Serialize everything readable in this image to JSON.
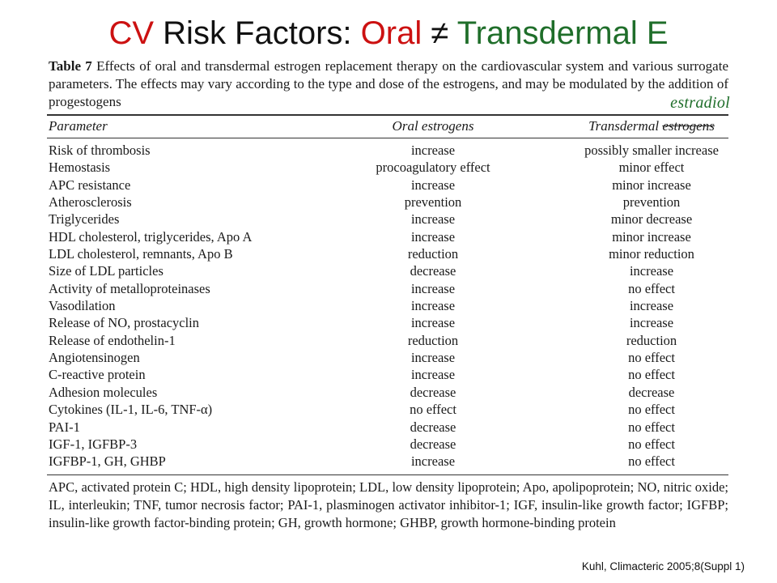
{
  "slide": {
    "title": {
      "part1": "CV",
      "part2": "Risk Factors:",
      "part3": "Oral",
      "neq": "≠",
      "part4": "Transdermal E"
    },
    "overlay_word": "estradiol",
    "citation": "Kuhl, Climacteric 2005;8(Suppl 1)"
  },
  "table": {
    "caption_label": "Table 7",
    "caption_text": "Effects of oral and transdermal estrogen replacement therapy on the cardiovascular system and various surrogate parameters. The effects may vary according to the type and dose of the estrogens, and may be modulated by the addition of progestogens",
    "headers": {
      "parameter": "Parameter",
      "oral": "Oral estrogens",
      "transdermal": "Transdermal",
      "transdermal_struck": "estrogens"
    },
    "rows": [
      {
        "parameter": "Risk of thrombosis",
        "oral": "increase",
        "transdermal": "possibly smaller increase"
      },
      {
        "parameter": "Hemostasis",
        "oral": "procoagulatory effect",
        "transdermal": "minor effect"
      },
      {
        "parameter": "APC resistance",
        "oral": "increase",
        "transdermal": "minor increase"
      },
      {
        "parameter": "Atherosclerosis",
        "oral": "prevention",
        "transdermal": "prevention"
      },
      {
        "parameter": "Triglycerides",
        "oral": "increase",
        "transdermal": "minor decrease"
      },
      {
        "parameter": "HDL cholesterol, triglycerides, Apo A",
        "oral": "increase",
        "transdermal": "minor increase"
      },
      {
        "parameter": "LDL cholesterol, remnants, Apo B",
        "oral": "reduction",
        "transdermal": "minor reduction"
      },
      {
        "parameter": "Size of LDL particles",
        "oral": "decrease",
        "transdermal": "increase"
      },
      {
        "parameter": "Activity of metalloproteinases",
        "oral": "increase",
        "transdermal": "no effect"
      },
      {
        "parameter": "Vasodilation",
        "oral": "increase",
        "transdermal": "increase"
      },
      {
        "parameter": "Release of NO, prostacyclin",
        "oral": "increase",
        "transdermal": "increase"
      },
      {
        "parameter": "Release of endothelin-1",
        "oral": "reduction",
        "transdermal": "reduction"
      },
      {
        "parameter": "Angiotensinogen",
        "oral": "increase",
        "transdermal": "no effect"
      },
      {
        "parameter": "C-reactive protein",
        "oral": "increase",
        "transdermal": "no effect"
      },
      {
        "parameter": "Adhesion molecules",
        "oral": "decrease",
        "transdermal": "decrease"
      },
      {
        "parameter": "Cytokines (IL-1, IL-6, TNF-α)",
        "oral": "no effect",
        "transdermal": "no effect"
      },
      {
        "parameter": "PAI-1",
        "oral": "decrease",
        "transdermal": "no effect"
      },
      {
        "parameter": "IGF-1, IGFBP-3",
        "oral": "decrease",
        "transdermal": "no effect"
      },
      {
        "parameter": "IGFBP-1, GH, GHBP",
        "oral": "increase",
        "transdermal": "no effect"
      }
    ],
    "footnote": "APC, activated protein C; HDL, high density lipoprotein; LDL, low density lipoprotein; Apo, apolipoprotein; NO, nitric oxide; IL, interleukin; TNF, tumor necrosis factor; PAI-1, plasminogen activator inhibitor-1; IGF, insulin-like growth factor; IGFBP; insulin-like growth factor-binding protein; GH, growth hormone; GHBP, growth hormone-binding protein"
  },
  "colors": {
    "title_red": "#cc1111",
    "title_green": "#1f6e2a",
    "estradiol_green": "#1f6e2a"
  }
}
